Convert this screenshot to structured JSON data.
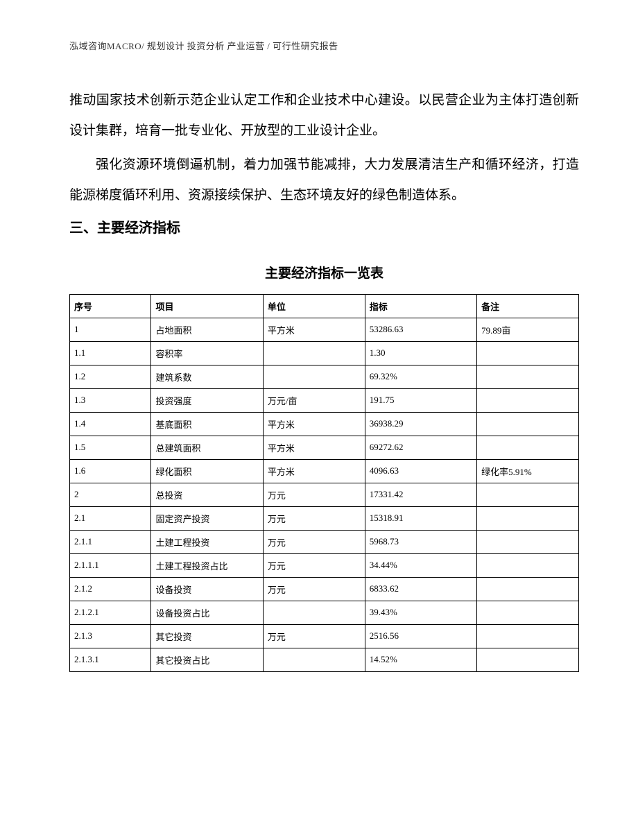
{
  "header": "泓域咨询MACRO/ 规划设计   投资分析   产业运营 / 可行性研究报告",
  "para1": "推动国家技术创新示范企业认定工作和企业技术中心建设。以民营企业为主体打造创新设计集群，培育一批专业化、开放型的工业设计企业。",
  "para2": "强化资源环境倒逼机制，着力加强节能减排，大力发展清洁生产和循环经济，打造能源梯度循环利用、资源接续保护、生态环境友好的绿色制造体系。",
  "sectionHeading": "三、主要经济指标",
  "tableTitle": "主要经济指标一览表",
  "table": {
    "columns": [
      "序号",
      "项目",
      "单位",
      "指标",
      "备注"
    ],
    "rows": [
      [
        "1",
        "占地面积",
        "平方米",
        "53286.63",
        "79.89亩"
      ],
      [
        "1.1",
        "容积率",
        "",
        "1.30",
        ""
      ],
      [
        "1.2",
        "建筑系数",
        "",
        "69.32%",
        ""
      ],
      [
        "1.3",
        "投资强度",
        "万元/亩",
        "191.75",
        ""
      ],
      [
        "1.4",
        "基底面积",
        "平方米",
        "36938.29",
        ""
      ],
      [
        "1.5",
        "总建筑面积",
        "平方米",
        "69272.62",
        ""
      ],
      [
        "1.6",
        "绿化面积",
        "平方米",
        "4096.63",
        "绿化率5.91%"
      ],
      [
        "2",
        "总投资",
        "万元",
        "17331.42",
        ""
      ],
      [
        "2.1",
        "固定资产投资",
        "万元",
        "15318.91",
        ""
      ],
      [
        "2.1.1",
        "土建工程投资",
        "万元",
        "5968.73",
        ""
      ],
      [
        "2.1.1.1",
        "土建工程投资占比",
        "万元",
        "34.44%",
        ""
      ],
      [
        "2.1.2",
        "设备投资",
        "万元",
        "6833.62",
        ""
      ],
      [
        "2.1.2.1",
        "设备投资占比",
        "",
        "39.43%",
        ""
      ],
      [
        "2.1.3",
        "其它投资",
        "万元",
        "2516.56",
        ""
      ],
      [
        "2.1.3.1",
        "其它投资占比",
        "",
        "14.52%",
        ""
      ]
    ]
  }
}
